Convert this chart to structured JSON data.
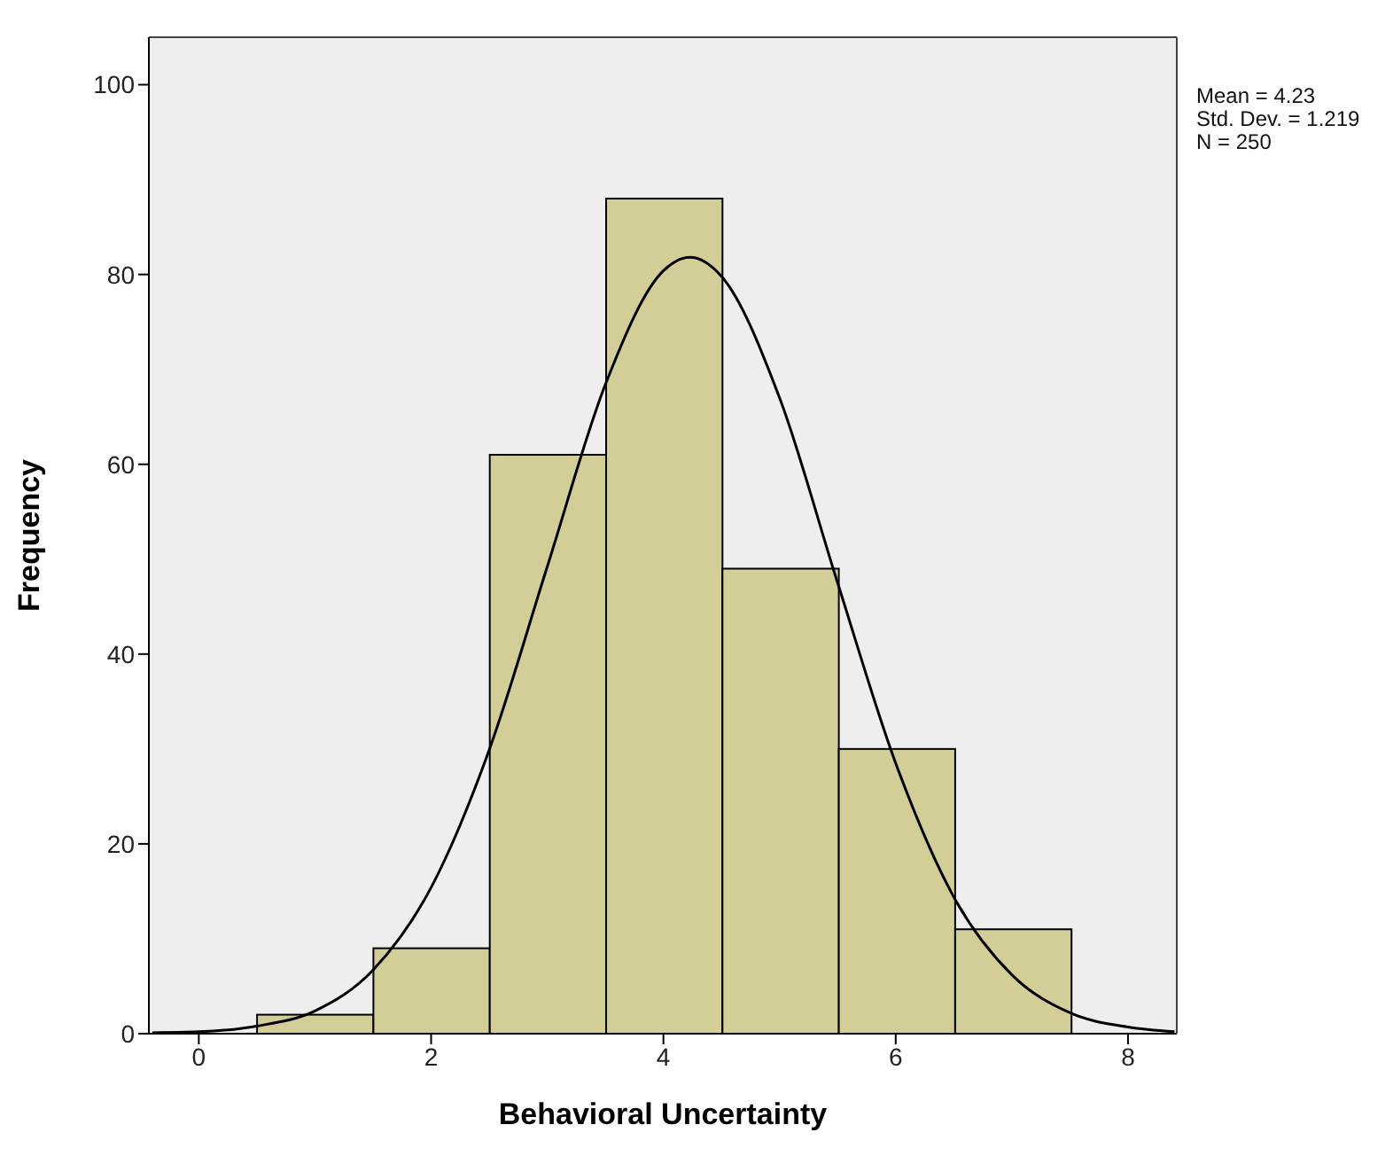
{
  "chart_data": {
    "type": "histogram",
    "xlabel": "Behavioral Uncertainty",
    "ylabel": "Frequency",
    "bins": [
      0.5,
      1.5,
      2.5,
      3.5,
      4.5,
      5.5,
      6.5,
      7.5
    ],
    "values": [
      2,
      9,
      61,
      88,
      49,
      30,
      11
    ],
    "color": "#d3ce98",
    "series": [
      {
        "type": "line",
        "color": "#000000",
        "x": [
          -0.4,
          0,
          0.5,
          1,
          1.5,
          2,
          2.5,
          3,
          3.5,
          4,
          4.23,
          4.5,
          5,
          5.5,
          6,
          6.5,
          7,
          7.5,
          8,
          8.4
        ],
        "values": [
          0.1,
          0.2,
          0.8,
          2.4,
          6.7,
          15.4,
          29.9,
          49.2,
          68.4,
          80.4,
          81.8,
          79.8,
          67.0,
          47.5,
          28.5,
          14.4,
          6.2,
          2.2,
          0.7,
          0.2
        ]
      }
    ],
    "xlim": [
      -0.43,
      8.42
    ],
    "xticks": [
      0,
      2,
      4,
      6,
      8
    ],
    "ylim": [
      0,
      105
    ],
    "yticks": [
      0,
      20,
      40,
      60,
      80,
      100
    ],
    "marker": "none",
    "annotations": [
      "Mean = 4.23",
      "Std. Dev. = 1.219",
      "N = 250"
    ]
  }
}
